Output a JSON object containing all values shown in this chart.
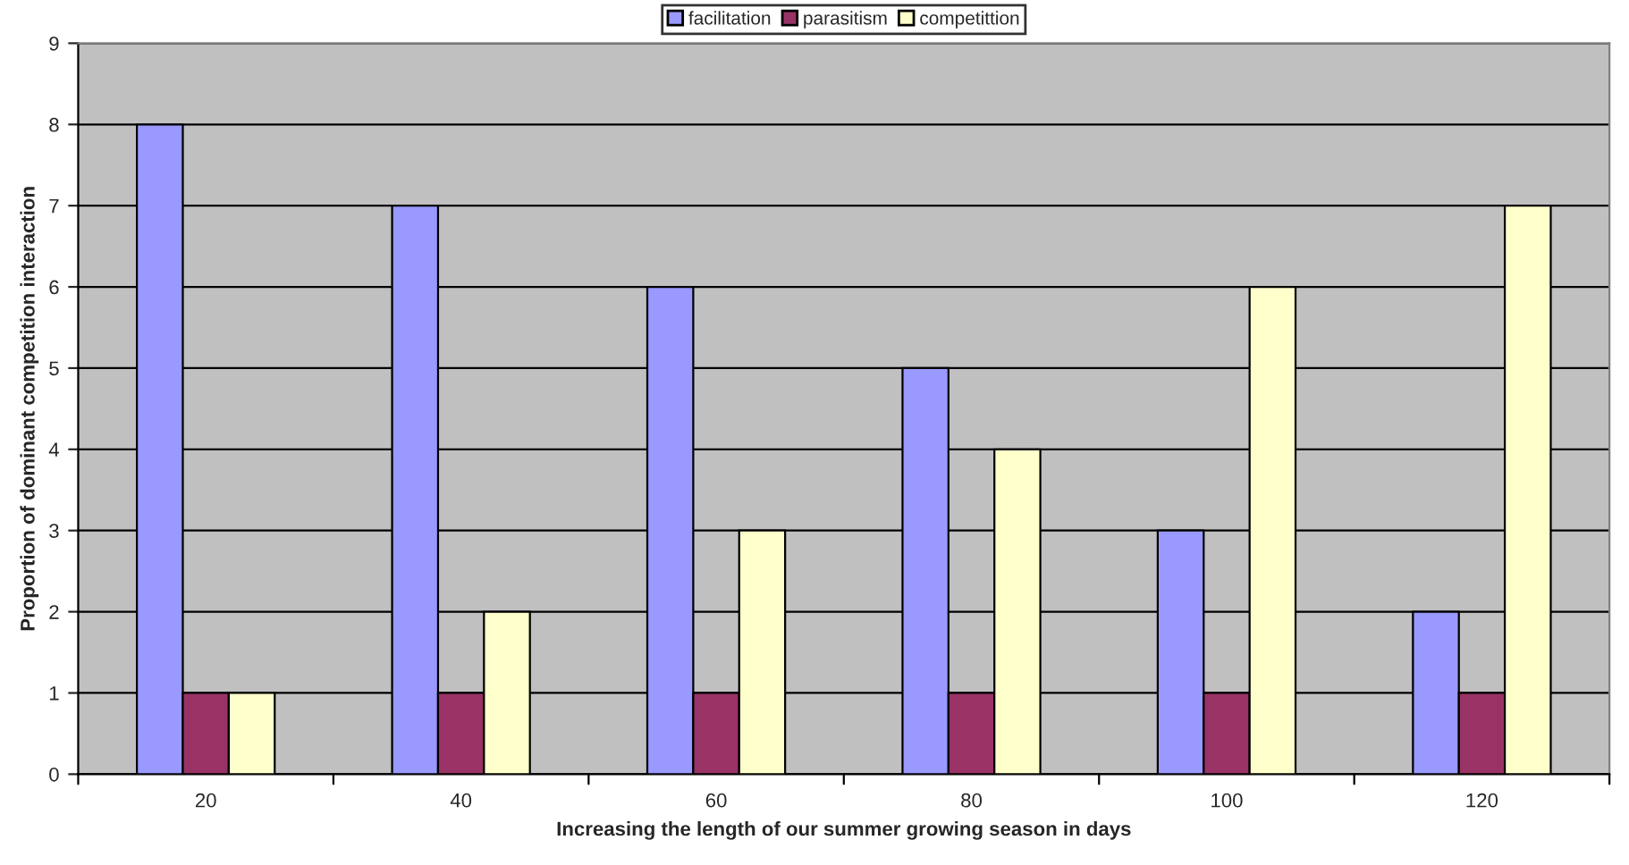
{
  "chart_data": {
    "type": "bar",
    "xlabel": "Increasing the length of our summer growing season in days",
    "ylabel": "Proportion of dominant competition interaction",
    "categories": [
      "20",
      "40",
      "60",
      "80",
      "100",
      "120"
    ],
    "series": [
      {
        "name": "facilitation",
        "color": "#9999ff",
        "values": [
          8,
          7,
          6,
          5,
          3,
          2
        ]
      },
      {
        "name": "parasitism",
        "color": "#993366",
        "values": [
          1,
          1,
          1,
          1,
          1,
          1
        ]
      },
      {
        "name": "competittion",
        "color": "#ffffcc",
        "values": [
          1,
          2,
          3,
          4,
          6,
          7
        ]
      }
    ],
    "ylim": [
      0,
      9
    ],
    "yticks": [
      0,
      1,
      2,
      3,
      4,
      5,
      6,
      7,
      8,
      9
    ],
    "grid": "y",
    "legend": "top"
  }
}
